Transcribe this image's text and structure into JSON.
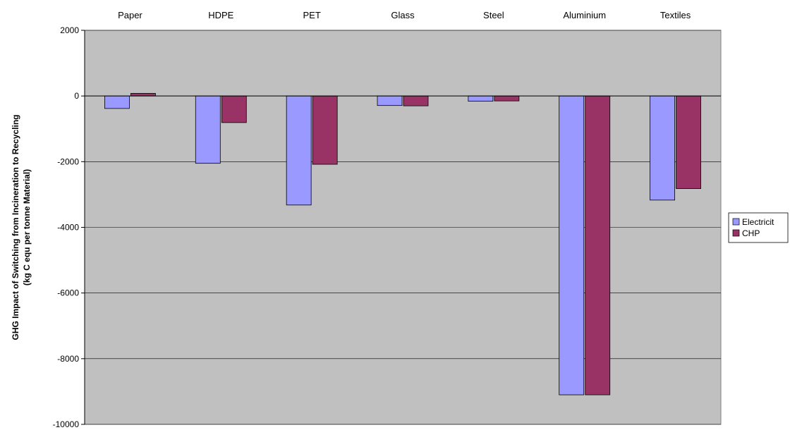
{
  "chart_data": {
    "type": "bar",
    "title": "",
    "categories": [
      "Paper",
      "HDPE",
      "PET",
      "Glass",
      "Steel",
      "Aluminium",
      "Textiles"
    ],
    "series": [
      {
        "name": "Electricit",
        "color": "#9999ff",
        "values": [
          -380,
          -2050,
          -3320,
          -290,
          -160,
          -9100,
          -3170
        ]
      },
      {
        "name": "CHP",
        "color": "#993366",
        "values": [
          80,
          -810,
          -2080,
          -300,
          -150,
          -9100,
          -2820
        ]
      }
    ],
    "xlabel": "",
    "ylabel_lines": [
      "GHG Impact of Switching from Incineration to Recycling",
      "(kg C equ per tonne Material)"
    ],
    "ylim": [
      -10000,
      2000
    ],
    "yticks": [
      2000,
      0,
      -2000,
      -4000,
      -6000,
      -8000,
      -10000
    ],
    "category_axis_position": "top",
    "grid": true,
    "plot_background": "#c0c0c0",
    "legend_position": "right"
  }
}
